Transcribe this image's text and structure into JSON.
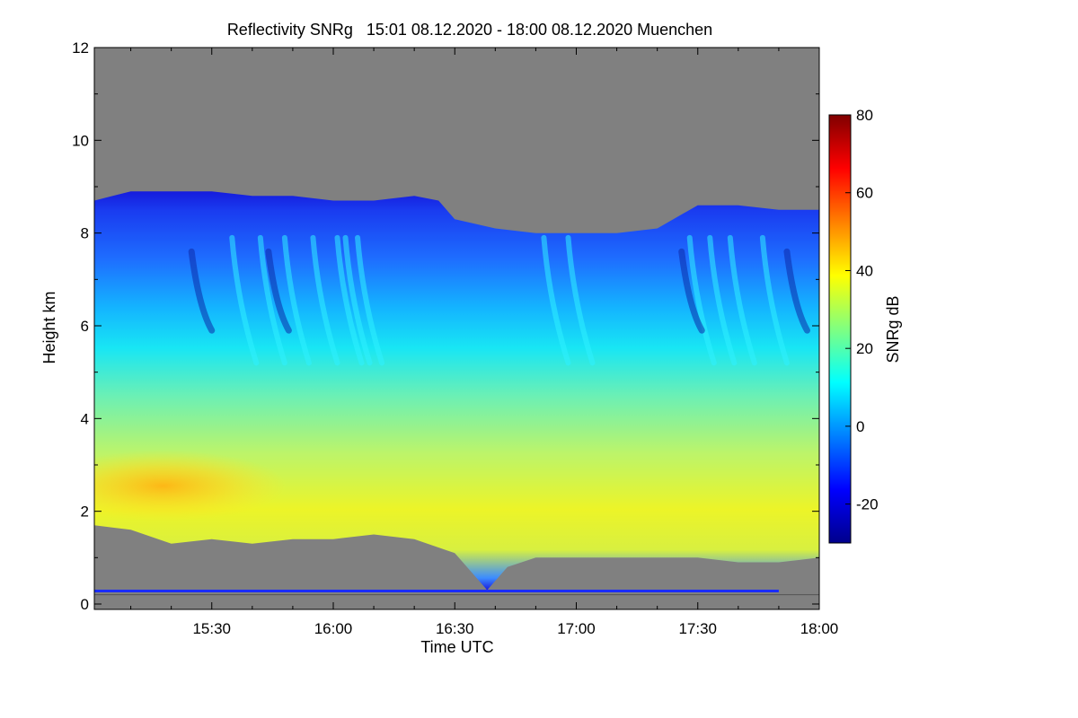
{
  "chart_data": {
    "type": "heatmap",
    "title": "Reflectivity SNRg   15:01 08.12.2020 - 18:00 08.12.2020 Muenchen",
    "xlabel": "Time UTC",
    "ylabel": "Height km",
    "xlim_minutes": [
      901,
      1080
    ],
    "ylim": [
      0,
      12
    ],
    "x_ticks": [
      {
        "label": "15:30",
        "minutes": 930
      },
      {
        "label": "16:00",
        "minutes": 960
      },
      {
        "label": "16:30",
        "minutes": 990
      },
      {
        "label": "17:00",
        "minutes": 1020
      },
      {
        "label": "17:30",
        "minutes": 1050
      },
      {
        "label": "18:00",
        "minutes": 1080
      }
    ],
    "y_ticks": [
      {
        "label": "0",
        "value": 0
      },
      {
        "label": "2",
        "value": 2
      },
      {
        "label": "4",
        "value": 4
      },
      {
        "label": "6",
        "value": 6
      },
      {
        "label": "8",
        "value": 8
      },
      {
        "label": "10",
        "value": 10
      },
      {
        "label": "12",
        "value": 12
      }
    ],
    "colorbar": {
      "label": "SNRg dB",
      "range": [
        -30,
        80
      ],
      "ticks": [
        {
          "label": "80",
          "value": 80
        },
        {
          "label": "60",
          "value": 60
        },
        {
          "label": "40",
          "value": 40
        },
        {
          "label": "20",
          "value": 20
        },
        {
          "label": "0",
          "value": 0
        },
        {
          "label": "-20",
          "value": -20
        }
      ],
      "colors": [
        "#00008b",
        "#0000ff",
        "#0080ff",
        "#00ffff",
        "#80ff80",
        "#ffff00",
        "#ff8000",
        "#ff0000",
        "#800000"
      ]
    },
    "background_color": "#808080",
    "cloud_top_km": [
      [
        901,
        8.7
      ],
      [
        910,
        8.9
      ],
      [
        920,
        8.9
      ],
      [
        930,
        8.9
      ],
      [
        940,
        8.8
      ],
      [
        950,
        8.8
      ],
      [
        960,
        8.7
      ],
      [
        970,
        8.7
      ],
      [
        980,
        8.8
      ],
      [
        986,
        8.7
      ],
      [
        990,
        8.3
      ],
      [
        1000,
        8.1
      ],
      [
        1010,
        8.0
      ],
      [
        1020,
        8.0
      ],
      [
        1030,
        8.0
      ],
      [
        1040,
        8.1
      ],
      [
        1050,
        8.6
      ],
      [
        1060,
        8.6
      ],
      [
        1070,
        8.5
      ],
      [
        1080,
        8.5
      ]
    ],
    "cloud_base_km": [
      [
        901,
        1.7
      ],
      [
        910,
        1.6
      ],
      [
        920,
        1.3
      ],
      [
        930,
        1.4
      ],
      [
        940,
        1.3
      ],
      [
        950,
        1.4
      ],
      [
        960,
        1.4
      ],
      [
        970,
        1.5
      ],
      [
        980,
        1.4
      ],
      [
        990,
        1.1
      ],
      [
        995,
        0.6
      ],
      [
        998,
        0.3
      ],
      [
        1003,
        0.8
      ],
      [
        1010,
        1.0
      ],
      [
        1020,
        1.0
      ],
      [
        1030,
        1.0
      ],
      [
        1040,
        1.0
      ],
      [
        1050,
        1.0
      ],
      [
        1060,
        0.9
      ],
      [
        1070,
        0.9
      ],
      [
        1080,
        1.0
      ]
    ],
    "profile_snr_db": [
      {
        "height_km": 1.8,
        "snr": 30
      },
      {
        "height_km": 2.5,
        "snr": 34
      },
      {
        "height_km": 3.5,
        "snr": 28
      },
      {
        "height_km": 4.5,
        "snr": 20
      },
      {
        "height_km": 5.5,
        "snr": 14
      },
      {
        "height_km": 6.5,
        "snr": 5
      },
      {
        "height_km": 7.5,
        "snr": -10
      },
      {
        "height_km": 8.5,
        "snr": -18
      }
    ],
    "max_snr_region": {
      "time_minutes": [
        901,
        935
      ],
      "height_km": [
        2.2,
        2.9
      ],
      "snr": 45
    }
  }
}
